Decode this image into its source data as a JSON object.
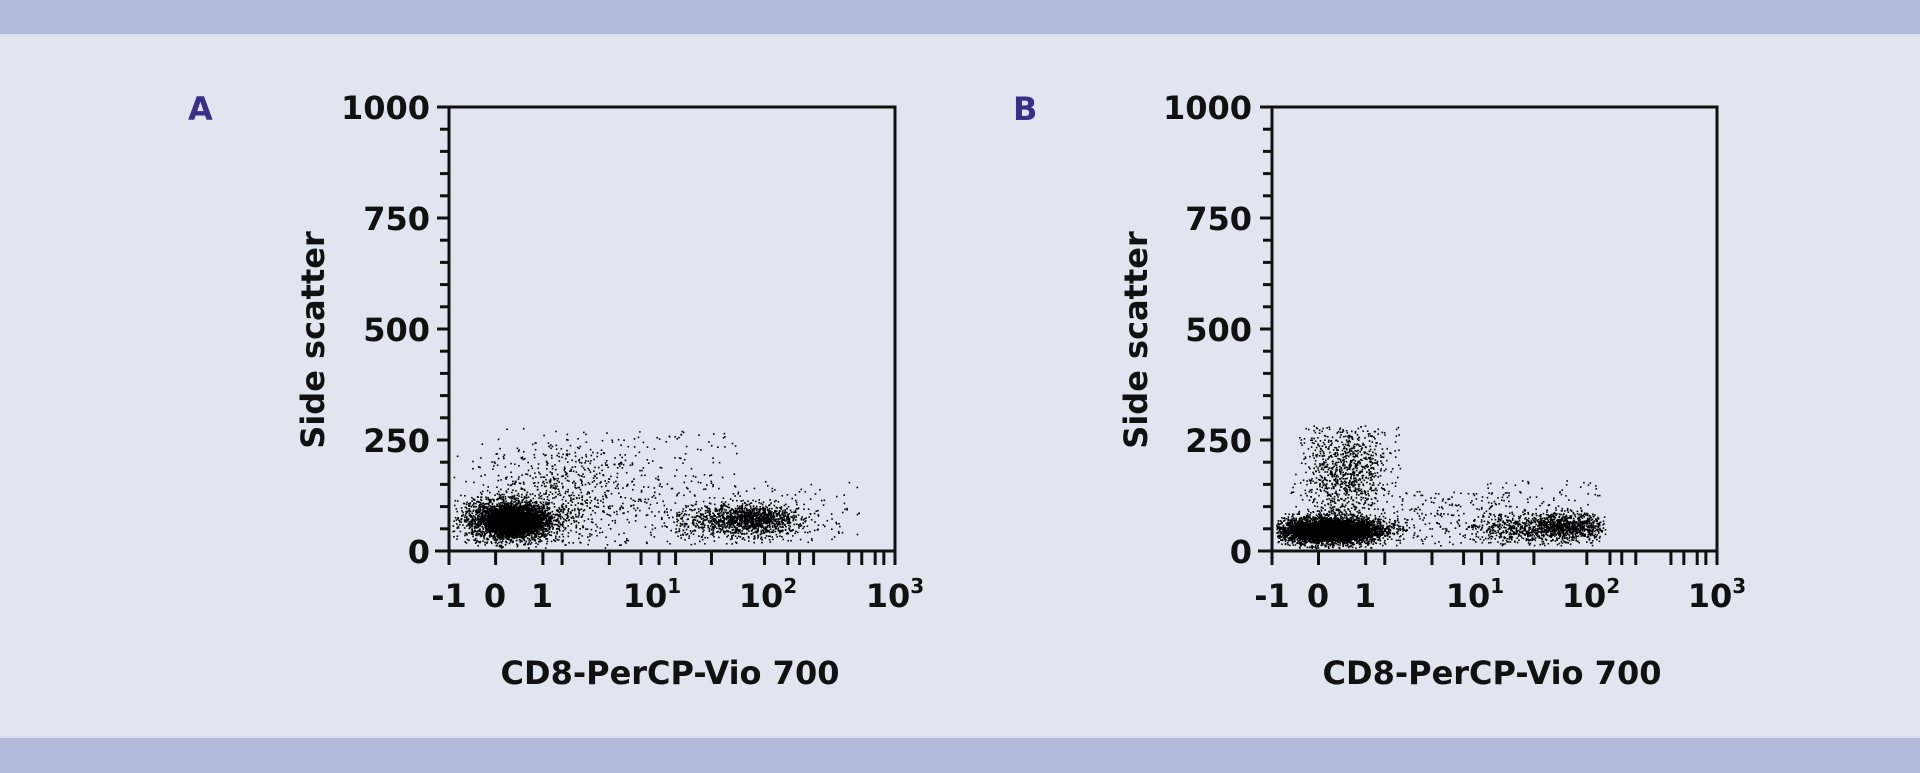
{
  "colors": {
    "band": "#b3b9db",
    "background": "#e2e5f0",
    "panel_label": "#3a2e86",
    "axis": "#111111",
    "dots": "#000000"
  },
  "panels": [
    {
      "label": "A",
      "ylabel": "Side scatter",
      "xlabel": "CD8-PerCP-Vio 700",
      "yticks": [
        "1000",
        "750",
        "500",
        "250",
        "0"
      ],
      "xticks": [
        "-1",
        "0",
        "1",
        "10",
        "10",
        "10"
      ],
      "xsup": [
        "",
        "",
        "",
        "1",
        "2",
        "3"
      ]
    },
    {
      "label": "B",
      "ylabel": "Side scatter",
      "xlabel": "CD8-PerCP-Vio 700",
      "yticks": [
        "1000",
        "750",
        "500",
        "250",
        "0"
      ],
      "xticks": [
        "-1",
        "0",
        "1",
        "10",
        "10",
        "10"
      ],
      "xsup": [
        "",
        "",
        "",
        "1",
        "2",
        "3"
      ]
    }
  ],
  "chart_data": [
    {
      "type": "scatter",
      "title": "A",
      "xlabel": "CD8-PerCP-Vio 700",
      "ylabel": "Side scatter",
      "ylim": [
        0,
        1000
      ],
      "yticks": [
        0,
        250,
        500,
        750,
        1000
      ],
      "xscale": "biexponential",
      "xticks": [
        "-1",
        "0",
        "1",
        "10^1",
        "10^2",
        "10^3"
      ],
      "grid": false,
      "populations": [
        {
          "name": "CD8-negative cluster",
          "x_center": 0,
          "y_center": 65,
          "x_spread": "~-1 to 1",
          "y_range": [
            20,
            150
          ],
          "density": "high"
        },
        {
          "name": "diffuse scatter",
          "x_range": [
            "0.5",
            "10"
          ],
          "y_range": [
            40,
            260
          ],
          "density": "low"
        },
        {
          "name": "CD8-positive cluster",
          "x_center": "~50",
          "y_center": 70,
          "x_range": [
            "20",
            "100"
          ],
          "y_range": [
            30,
            130
          ],
          "density": "medium"
        }
      ]
    },
    {
      "type": "scatter",
      "title": "B",
      "xlabel": "CD8-PerCP-Vio 700",
      "ylabel": "Side scatter",
      "ylim": [
        0,
        1000
      ],
      "yticks": [
        0,
        250,
        500,
        750,
        1000
      ],
      "xscale": "biexponential",
      "xticks": [
        "-1",
        "0",
        "1",
        "10^1",
        "10^2",
        "10^3"
      ],
      "grid": false,
      "populations": [
        {
          "name": "CD8-negative cluster",
          "x_center": 0,
          "y_center": 50,
          "x_spread": "~-1 to 1",
          "y_range": [
            20,
            100
          ],
          "density": "very high"
        },
        {
          "name": "high-SSC plume",
          "x_range": [
            "0",
            "1"
          ],
          "y_range": [
            100,
            265
          ],
          "density": "medium"
        },
        {
          "name": "diffuse bridge",
          "x_range": [
            "1",
            "10"
          ],
          "y_range": [
            20,
            130
          ],
          "density": "low"
        },
        {
          "name": "CD8-positive cluster",
          "x_center": "~50",
          "y_center": 55,
          "x_range": [
            "10",
            "100"
          ],
          "y_range": [
            20,
            120
          ],
          "density": "medium"
        }
      ]
    }
  ]
}
